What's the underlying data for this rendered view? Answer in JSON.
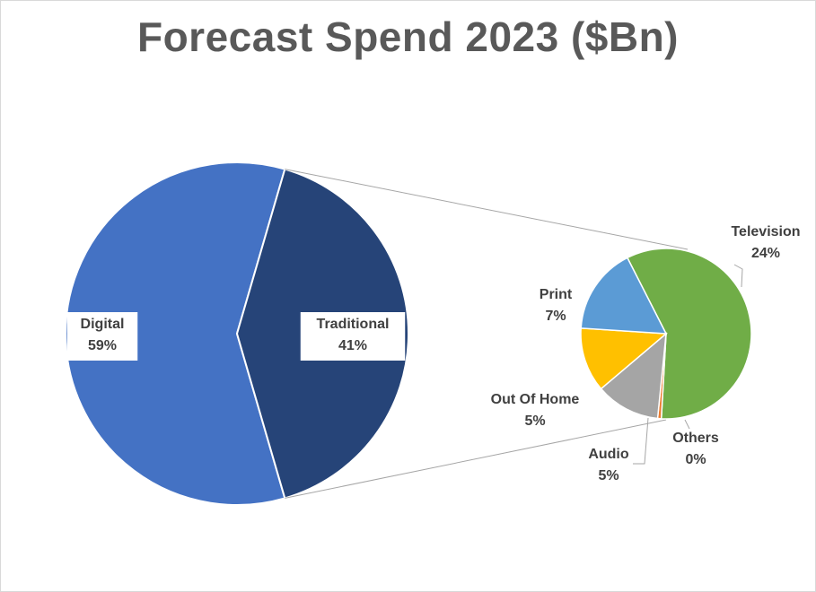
{
  "chart_data": {
    "type": "pie",
    "title": "Forecast Spend 2023 ($Bn)",
    "main_pie": [
      {
        "category": "Digital",
        "percent": 59,
        "label": "59%"
      },
      {
        "category": "Traditional",
        "percent": 41,
        "label": "41%"
      }
    ],
    "secondary_pie": [
      {
        "category": "Television",
        "percent": 24,
        "label": "24%",
        "share_of_traditional": 0.5839
      },
      {
        "category": "Others",
        "percent": 0,
        "label": "0%",
        "share_of_traditional": 0.007
      },
      {
        "category": "Audio",
        "percent": 5,
        "label": "5%",
        "share_of_traditional": 0.1222
      },
      {
        "category": "Out Of Home",
        "percent": 5,
        "label": "5%",
        "share_of_traditional": 0.1222
      },
      {
        "category": "Print",
        "percent": 7,
        "label": "7%",
        "share_of_traditional": 0.1647
      }
    ],
    "colors": {
      "Digital": "#4472c4",
      "Traditional": "#264478",
      "Television": "#70ad47",
      "Others": "#ed7d31",
      "Audio": "#a5a5a5",
      "Out Of Home": "#ffc000",
      "Print": "#5b9bd5"
    },
    "legend": "none"
  }
}
